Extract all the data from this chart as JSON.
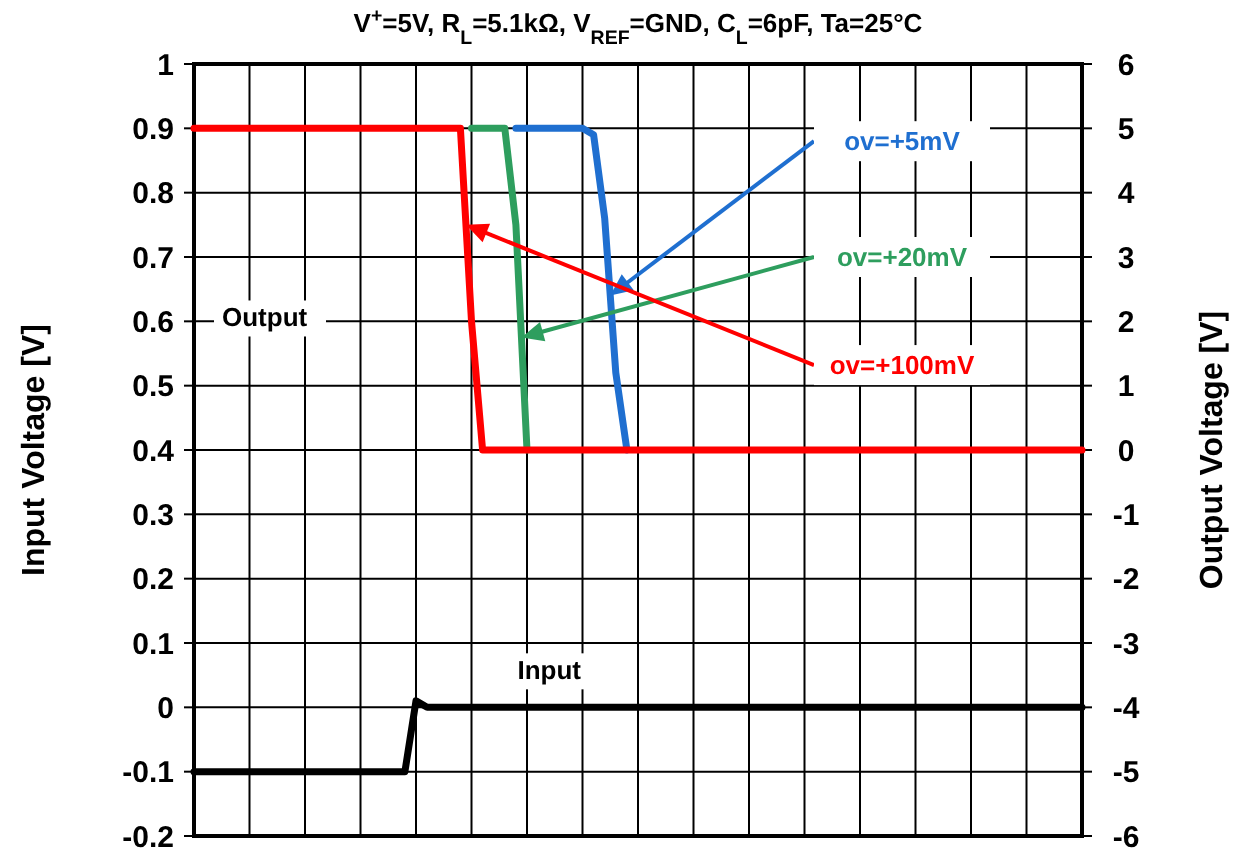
{
  "chart_data": {
    "type": "line",
    "title": "V$^{+}$=5V, R$_{L}$=5.1kΩ, V$_{REF}$=GND, C$_{L}$=6pF, Ta=25°C",
    "ylabel": "Input Voltage [V]",
    "y2label": "Output Voltage [V]",
    "categories": [
      null,
      null,
      null,
      null,
      null,
      null,
      null,
      null,
      null,
      null,
      null,
      null,
      null,
      null,
      null,
      null,
      null,
      null,
      null,
      null,
      null,
      null,
      null,
      null,
      null,
      null,
      null,
      null,
      null,
      null,
      null,
      null,
      null,
      null,
      null,
      null,
      null,
      null,
      null,
      null,
      null,
      null,
      null,
      null,
      null,
      null,
      null,
      null,
      null,
      null,
      null,
      null,
      null,
      null,
      null,
      null,
      null,
      null,
      null,
      null,
      null,
      null,
      null,
      null,
      null,
      null,
      null,
      null,
      null,
      null,
      null,
      null,
      null,
      null,
      null,
      null,
      null,
      null,
      null,
      null,
      null
    ],
    "ylim": [
      -0.2,
      1
    ],
    "yticks": [
      -0.2,
      -0.1,
      0,
      0.1,
      0.2,
      0.3,
      0.4,
      0.5,
      0.6,
      0.7,
      0.8,
      0.9,
      1
    ],
    "y2lim": [
      -6,
      6
    ],
    "y2ticks": [
      -6,
      -5,
      -4,
      -3,
      -2,
      -1,
      0,
      1,
      2,
      3,
      4,
      5,
      6
    ],
    "grid": true,
    "marker": "none",
    "line_style": "solid",
    "series": [
      {
        "color": "#1f6fd0",
        "axis": "y2",
        "values": [
          null,
          null,
          null,
          null,
          null,
          null,
          null,
          null,
          null,
          null,
          null,
          null,
          null,
          null,
          null,
          null,
          null,
          null,
          null,
          null,
          null,
          null,
          null,
          null,
          null,
          null,
          null,
          null,
          null,
          5,
          5,
          5,
          5,
          5,
          5,
          5,
          4.9,
          3.6,
          1.2,
          0,
          null,
          null,
          null,
          null,
          null,
          null,
          null,
          null,
          null,
          null,
          null,
          null,
          null,
          null,
          null,
          null,
          null,
          null,
          null,
          null,
          null,
          null,
          null,
          null,
          null,
          null,
          null,
          null,
          null,
          null,
          null,
          null,
          null,
          null,
          null,
          null,
          null,
          null,
          null,
          null,
          null
        ]
      },
      {
        "color": "#2e9e5e",
        "axis": "y2",
        "values": [
          null,
          null,
          null,
          null,
          null,
          null,
          null,
          null,
          null,
          null,
          null,
          null,
          null,
          null,
          null,
          null,
          null,
          null,
          null,
          null,
          null,
          null,
          null,
          null,
          null,
          5,
          5,
          5,
          5,
          3.5,
          0,
          null,
          null,
          null,
          null,
          null,
          null,
          null,
          null,
          null,
          null,
          null,
          null,
          null,
          null,
          null,
          null,
          null,
          null,
          null,
          null,
          null,
          null,
          null,
          null,
          null,
          null,
          null,
          null,
          null,
          null,
          null,
          null,
          null,
          null,
          null,
          null,
          null,
          null,
          null,
          null,
          null,
          null,
          null,
          null,
          null,
          null,
          null,
          null,
          null,
          null
        ]
      },
      {
        "color": "#ff0000",
        "axis": "y2",
        "values": [
          5,
          5,
          5,
          5,
          5,
          5,
          5,
          5,
          5,
          5,
          5,
          5,
          5,
          5,
          5,
          5,
          5,
          5,
          5,
          5,
          5,
          5,
          5,
          5,
          5,
          2,
          0,
          0,
          0,
          0,
          0,
          0,
          0,
          0,
          0,
          0,
          0,
          0,
          0,
          0,
          0,
          0,
          0,
          0,
          0,
          0,
          0,
          0,
          0,
          0,
          0,
          0,
          0,
          0,
          0,
          0,
          0,
          0,
          0,
          0,
          0,
          0,
          0,
          0,
          0,
          0,
          0,
          0,
          0,
          0,
          0,
          0,
          0,
          0,
          0,
          0,
          0,
          0,
          0,
          0,
          0
        ]
      },
      {
        "color": "#000000",
        "values": [
          -0.1,
          -0.1,
          -0.1,
          -0.1,
          -0.1,
          -0.1,
          -0.1,
          -0.1,
          -0.1,
          -0.1,
          -0.1,
          -0.1,
          -0.1,
          -0.1,
          -0.1,
          -0.1,
          -0.1,
          -0.1,
          -0.1,
          -0.1,
          0.01,
          0,
          0,
          0,
          0,
          0,
          0,
          0,
          0,
          0,
          0,
          0,
          0,
          0,
          0,
          0,
          0,
          0,
          0,
          0,
          0,
          0,
          0,
          0,
          0,
          0,
          0,
          0,
          0,
          0,
          0,
          0,
          0,
          0,
          0,
          0,
          0,
          0,
          0,
          0,
          0,
          0,
          0,
          0,
          0,
          0,
          0,
          0,
          0,
          0,
          0,
          0,
          0,
          0,
          0,
          0,
          0,
          0,
          0,
          0,
          0
        ]
      }
    ],
    "annotations": [
      "ov=+5mV",
      "ov=+20mV",
      "ov=+100mV",
      "Output",
      "Input"
    ]
  }
}
